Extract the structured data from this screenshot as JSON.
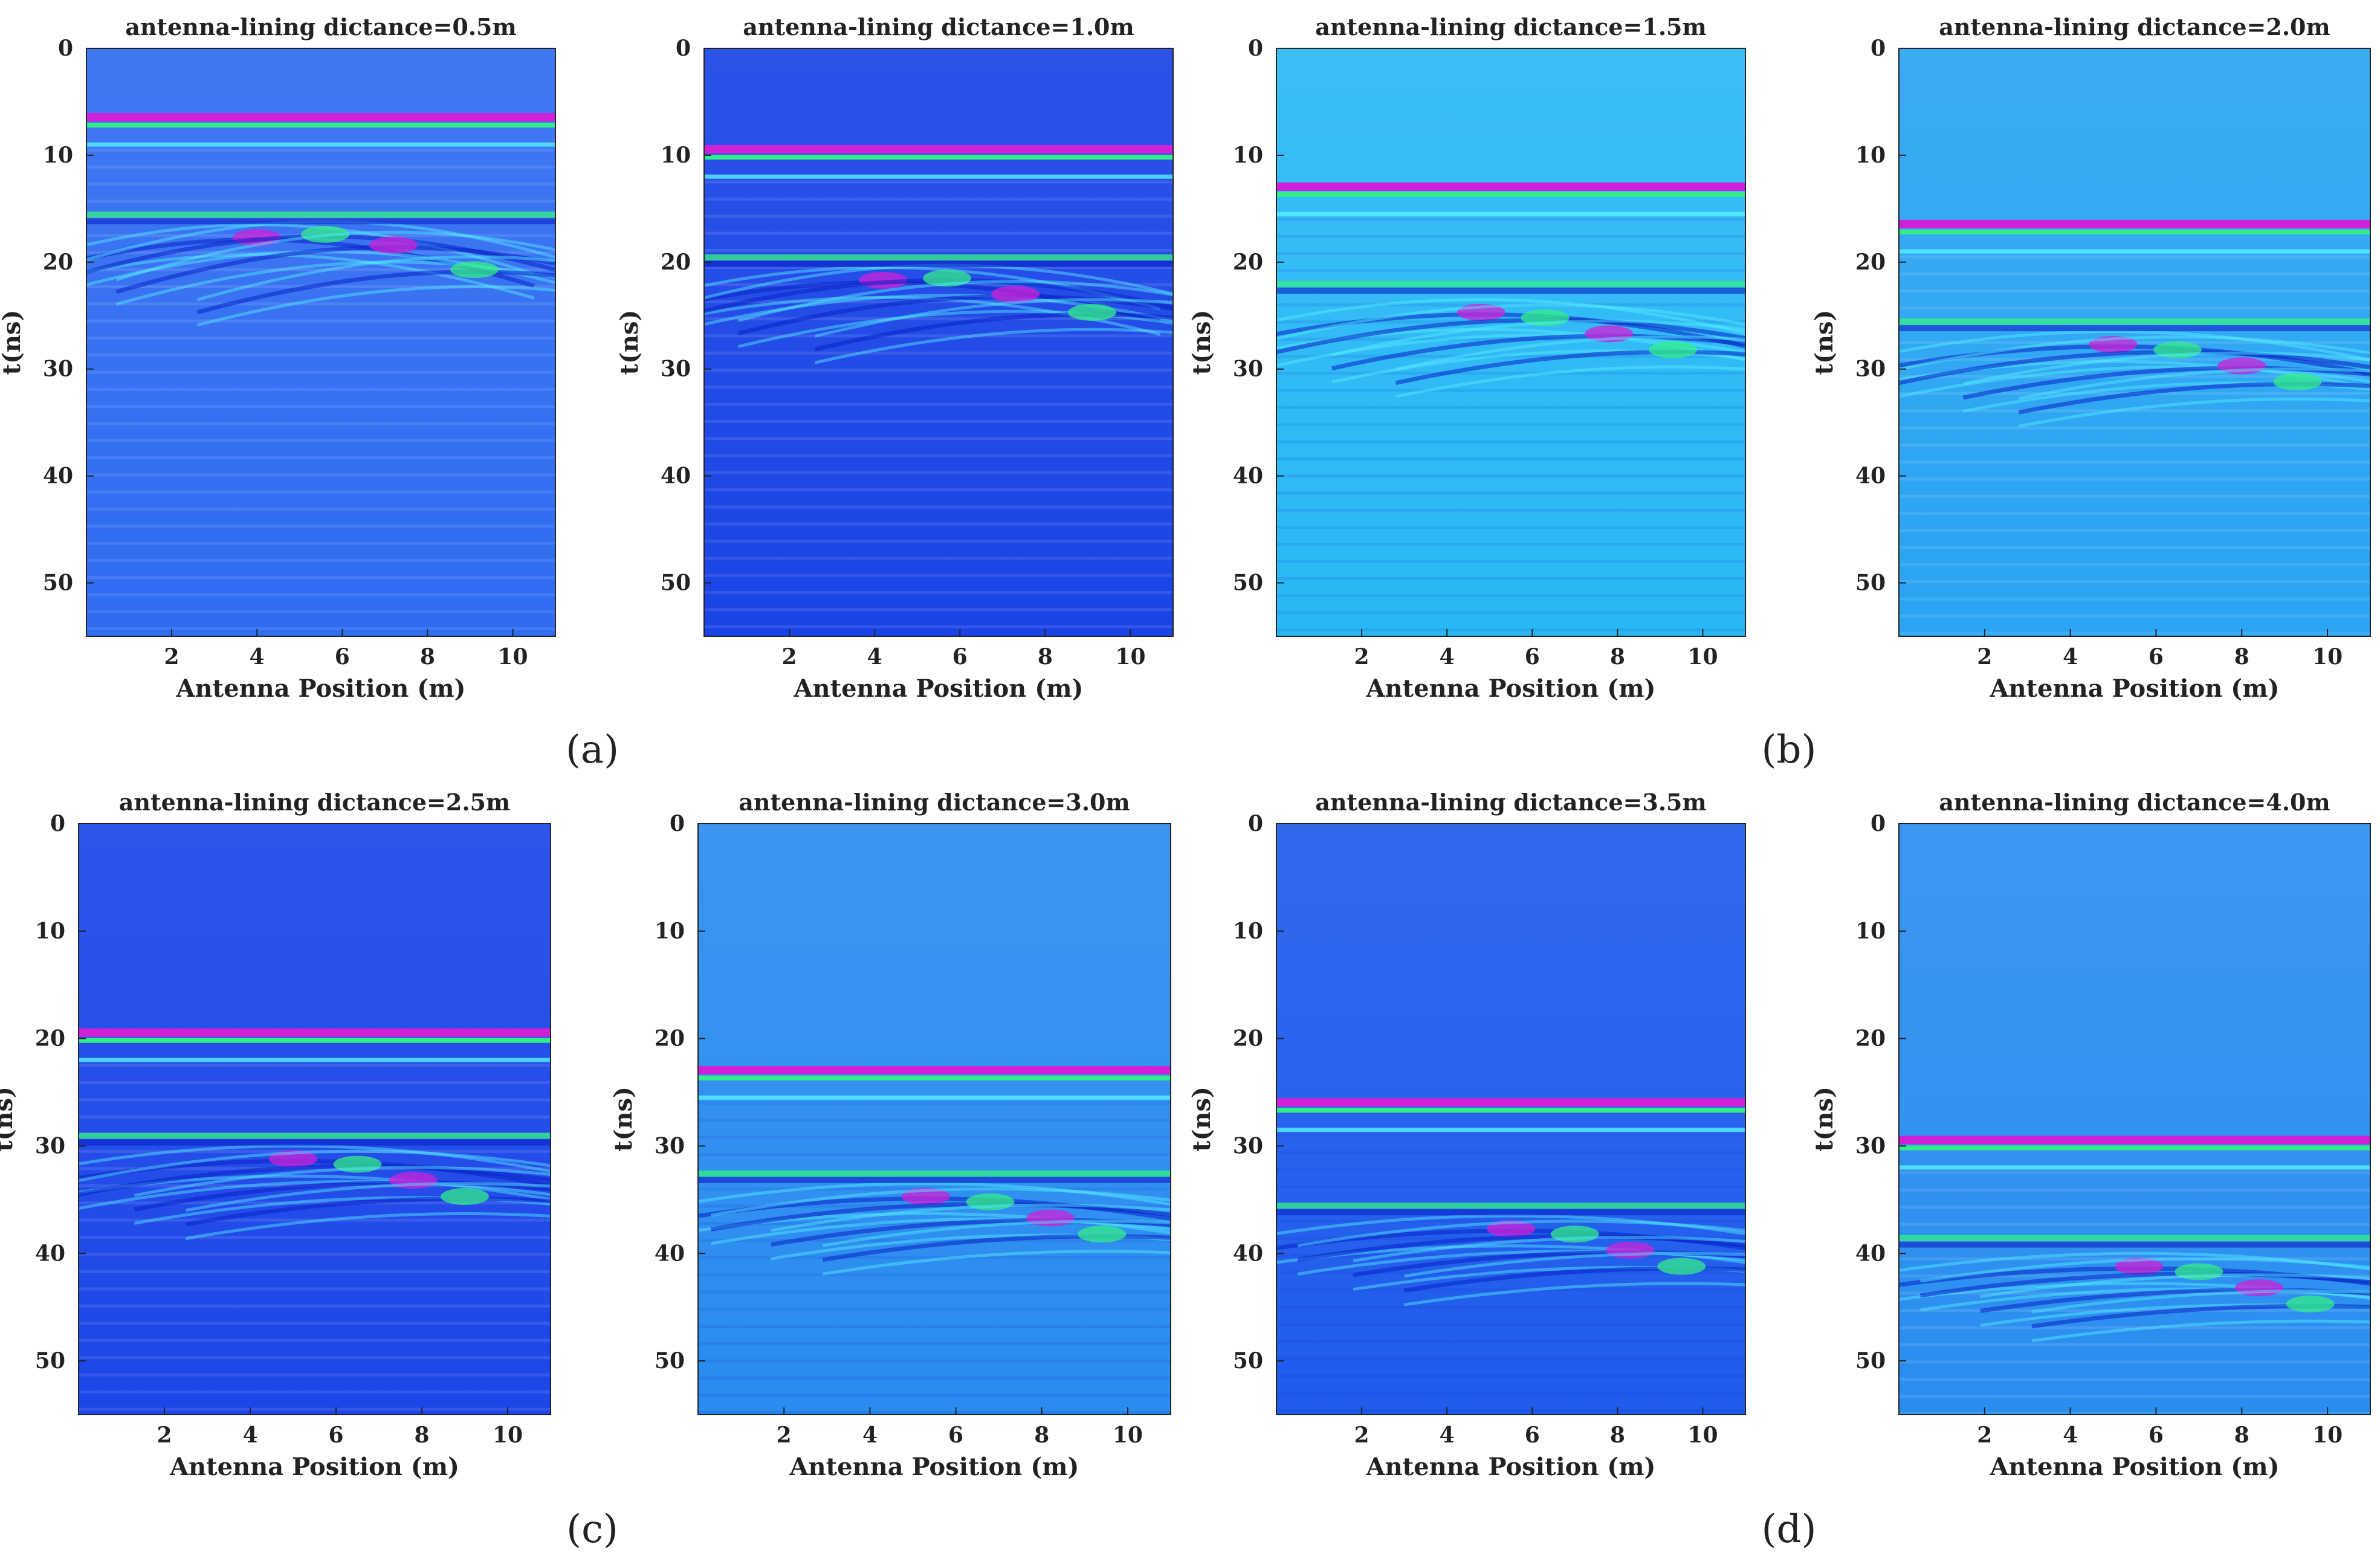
{
  "chart_data": [
    {
      "type": "heatmap",
      "panel": "a",
      "title": "antenna-lining dictance=0.5m",
      "xlabel": "Antenna Position (m)",
      "ylabel": "t(ns)",
      "xlim": [
        0,
        11
      ],
      "ylim": [
        0,
        55
      ],
      "xticks": [
        2,
        4,
        6,
        8,
        10
      ],
      "yticks": [
        0,
        10,
        20,
        30,
        40,
        50
      ],
      "background": "#2f6cf2",
      "lining_reflection_t": 6.5,
      "secondary_interface_t": 15.5,
      "hyperbola_apex": [
        [
          4.0,
          16.5
        ],
        [
          5.6,
          16.2
        ],
        [
          7.2,
          17.2
        ],
        [
          9.1,
          19.5
        ]
      ]
    },
    {
      "type": "heatmap",
      "panel": "a",
      "title": "antenna-lining dictance=1.0m",
      "xlabel": "Antenna Position (m)",
      "ylabel": "t(ns)",
      "xlim": [
        0,
        11
      ],
      "ylim": [
        0,
        55
      ],
      "xticks": [
        2,
        4,
        6,
        8,
        10
      ],
      "yticks": [
        0,
        10,
        20,
        30,
        40,
        50
      ],
      "background": "#1a44e6",
      "lining_reflection_t": 9.5,
      "secondary_interface_t": 19.5,
      "hyperbola_apex": [
        [
          4.2,
          20.5
        ],
        [
          5.7,
          20.3
        ],
        [
          7.3,
          21.8
        ],
        [
          9.1,
          23.5
        ]
      ]
    },
    {
      "type": "heatmap",
      "panel": "b",
      "title": "antenna-lining dictance=1.5m",
      "xlabel": "Antenna Position (m)",
      "ylabel": "t(ns)",
      "xlim": [
        0,
        11
      ],
      "ylim": [
        0,
        55
      ],
      "xticks": [
        2,
        4,
        6,
        8,
        10
      ],
      "yticks": [
        0,
        10,
        20,
        30,
        40,
        50
      ],
      "background": "#29b8f5",
      "lining_reflection_t": 13.0,
      "secondary_interface_t": 22.0,
      "hyperbola_apex": [
        [
          4.8,
          23.5
        ],
        [
          6.3,
          24.0
        ],
        [
          7.8,
          25.5
        ],
        [
          9.3,
          27.0
        ]
      ]
    },
    {
      "type": "heatmap",
      "panel": "b",
      "title": "antenna-lining dictance=2.0m",
      "xlabel": "Antenna Position (m)",
      "ylabel": "t(ns)",
      "xlim": [
        0,
        11
      ],
      "ylim": [
        0,
        55
      ],
      "xticks": [
        2,
        4,
        6,
        8,
        10
      ],
      "yticks": [
        0,
        10,
        20,
        30,
        40,
        50
      ],
      "background": "#2aa4f3",
      "lining_reflection_t": 16.5,
      "secondary_interface_t": 25.5,
      "hyperbola_apex": [
        [
          5.0,
          26.5
        ],
        [
          6.5,
          27.0
        ],
        [
          8.0,
          28.5
        ],
        [
          9.3,
          30.0
        ]
      ]
    },
    {
      "type": "heatmap",
      "panel": "c",
      "title": "antenna-lining dictance=2.5m",
      "xlabel": "Antenna Position (m)",
      "ylabel": "t(ns)",
      "xlim": [
        0,
        11
      ],
      "ylim": [
        0,
        55
      ],
      "xticks": [
        2,
        4,
        6,
        8,
        10
      ],
      "yticks": [
        0,
        10,
        20,
        30,
        40,
        50
      ],
      "background": "#1c46e8",
      "lining_reflection_t": 19.5,
      "secondary_interface_t": 29.0,
      "hyperbola_apex": [
        [
          5.0,
          30.0
        ],
        [
          6.5,
          30.5
        ],
        [
          7.8,
          32.0
        ],
        [
          9.0,
          33.5
        ]
      ]
    },
    {
      "type": "heatmap",
      "panel": "c",
      "title": "antenna-lining dictance=3.0m",
      "xlabel": "Antenna Position (m)",
      "ylabel": "t(ns)",
      "xlim": [
        0,
        11
      ],
      "ylim": [
        0,
        55
      ],
      "xticks": [
        2,
        4,
        6,
        8,
        10
      ],
      "yticks": [
        0,
        10,
        20,
        30,
        40,
        50
      ],
      "background": "#2a8cf0",
      "lining_reflection_t": 23.0,
      "secondary_interface_t": 32.5,
      "hyperbola_apex": [
        [
          5.3,
          33.5
        ],
        [
          6.8,
          34.0
        ],
        [
          8.2,
          35.5
        ],
        [
          9.4,
          37.0
        ]
      ]
    },
    {
      "type": "heatmap",
      "panel": "d",
      "title": "antenna-lining dictance=3.5m",
      "xlabel": "Antenna Position (m)",
      "ylabel": "t(ns)",
      "xlim": [
        0,
        11
      ],
      "ylim": [
        0,
        55
      ],
      "xticks": [
        2,
        4,
        6,
        8,
        10
      ],
      "yticks": [
        0,
        10,
        20,
        30,
        40,
        50
      ],
      "background": "#1f5cec",
      "lining_reflection_t": 26.0,
      "secondary_interface_t": 35.5,
      "hyperbola_apex": [
        [
          5.5,
          36.5
        ],
        [
          7.0,
          37.0
        ],
        [
          8.3,
          38.5
        ],
        [
          9.5,
          40.0
        ]
      ]
    },
    {
      "type": "heatmap",
      "panel": "d",
      "title": "antenna-lining dictance=4.0m",
      "xlabel": "Antenna Position (m)",
      "ylabel": "t(ns)",
      "xlim": [
        0,
        11
      ],
      "ylim": [
        0,
        55
      ],
      "xticks": [
        2,
        4,
        6,
        8,
        10
      ],
      "yticks": [
        0,
        10,
        20,
        30,
        40,
        50
      ],
      "background": "#2a8ef0",
      "lining_reflection_t": 29.5,
      "secondary_interface_t": 38.5,
      "hyperbola_apex": [
        [
          5.6,
          40.0
        ],
        [
          7.0,
          40.5
        ],
        [
          8.4,
          42.0
        ],
        [
          9.6,
          43.5
        ]
      ]
    }
  ],
  "panel_labels": [
    "(a)",
    "(b)",
    "(c)",
    "(d)"
  ],
  "colors": {
    "lining_band": "#d020d8",
    "reflection_green": "#33ee88",
    "bright_cyan": "#55f0ff",
    "deep_blue": "#0a22c8",
    "axis": "#222222"
  }
}
